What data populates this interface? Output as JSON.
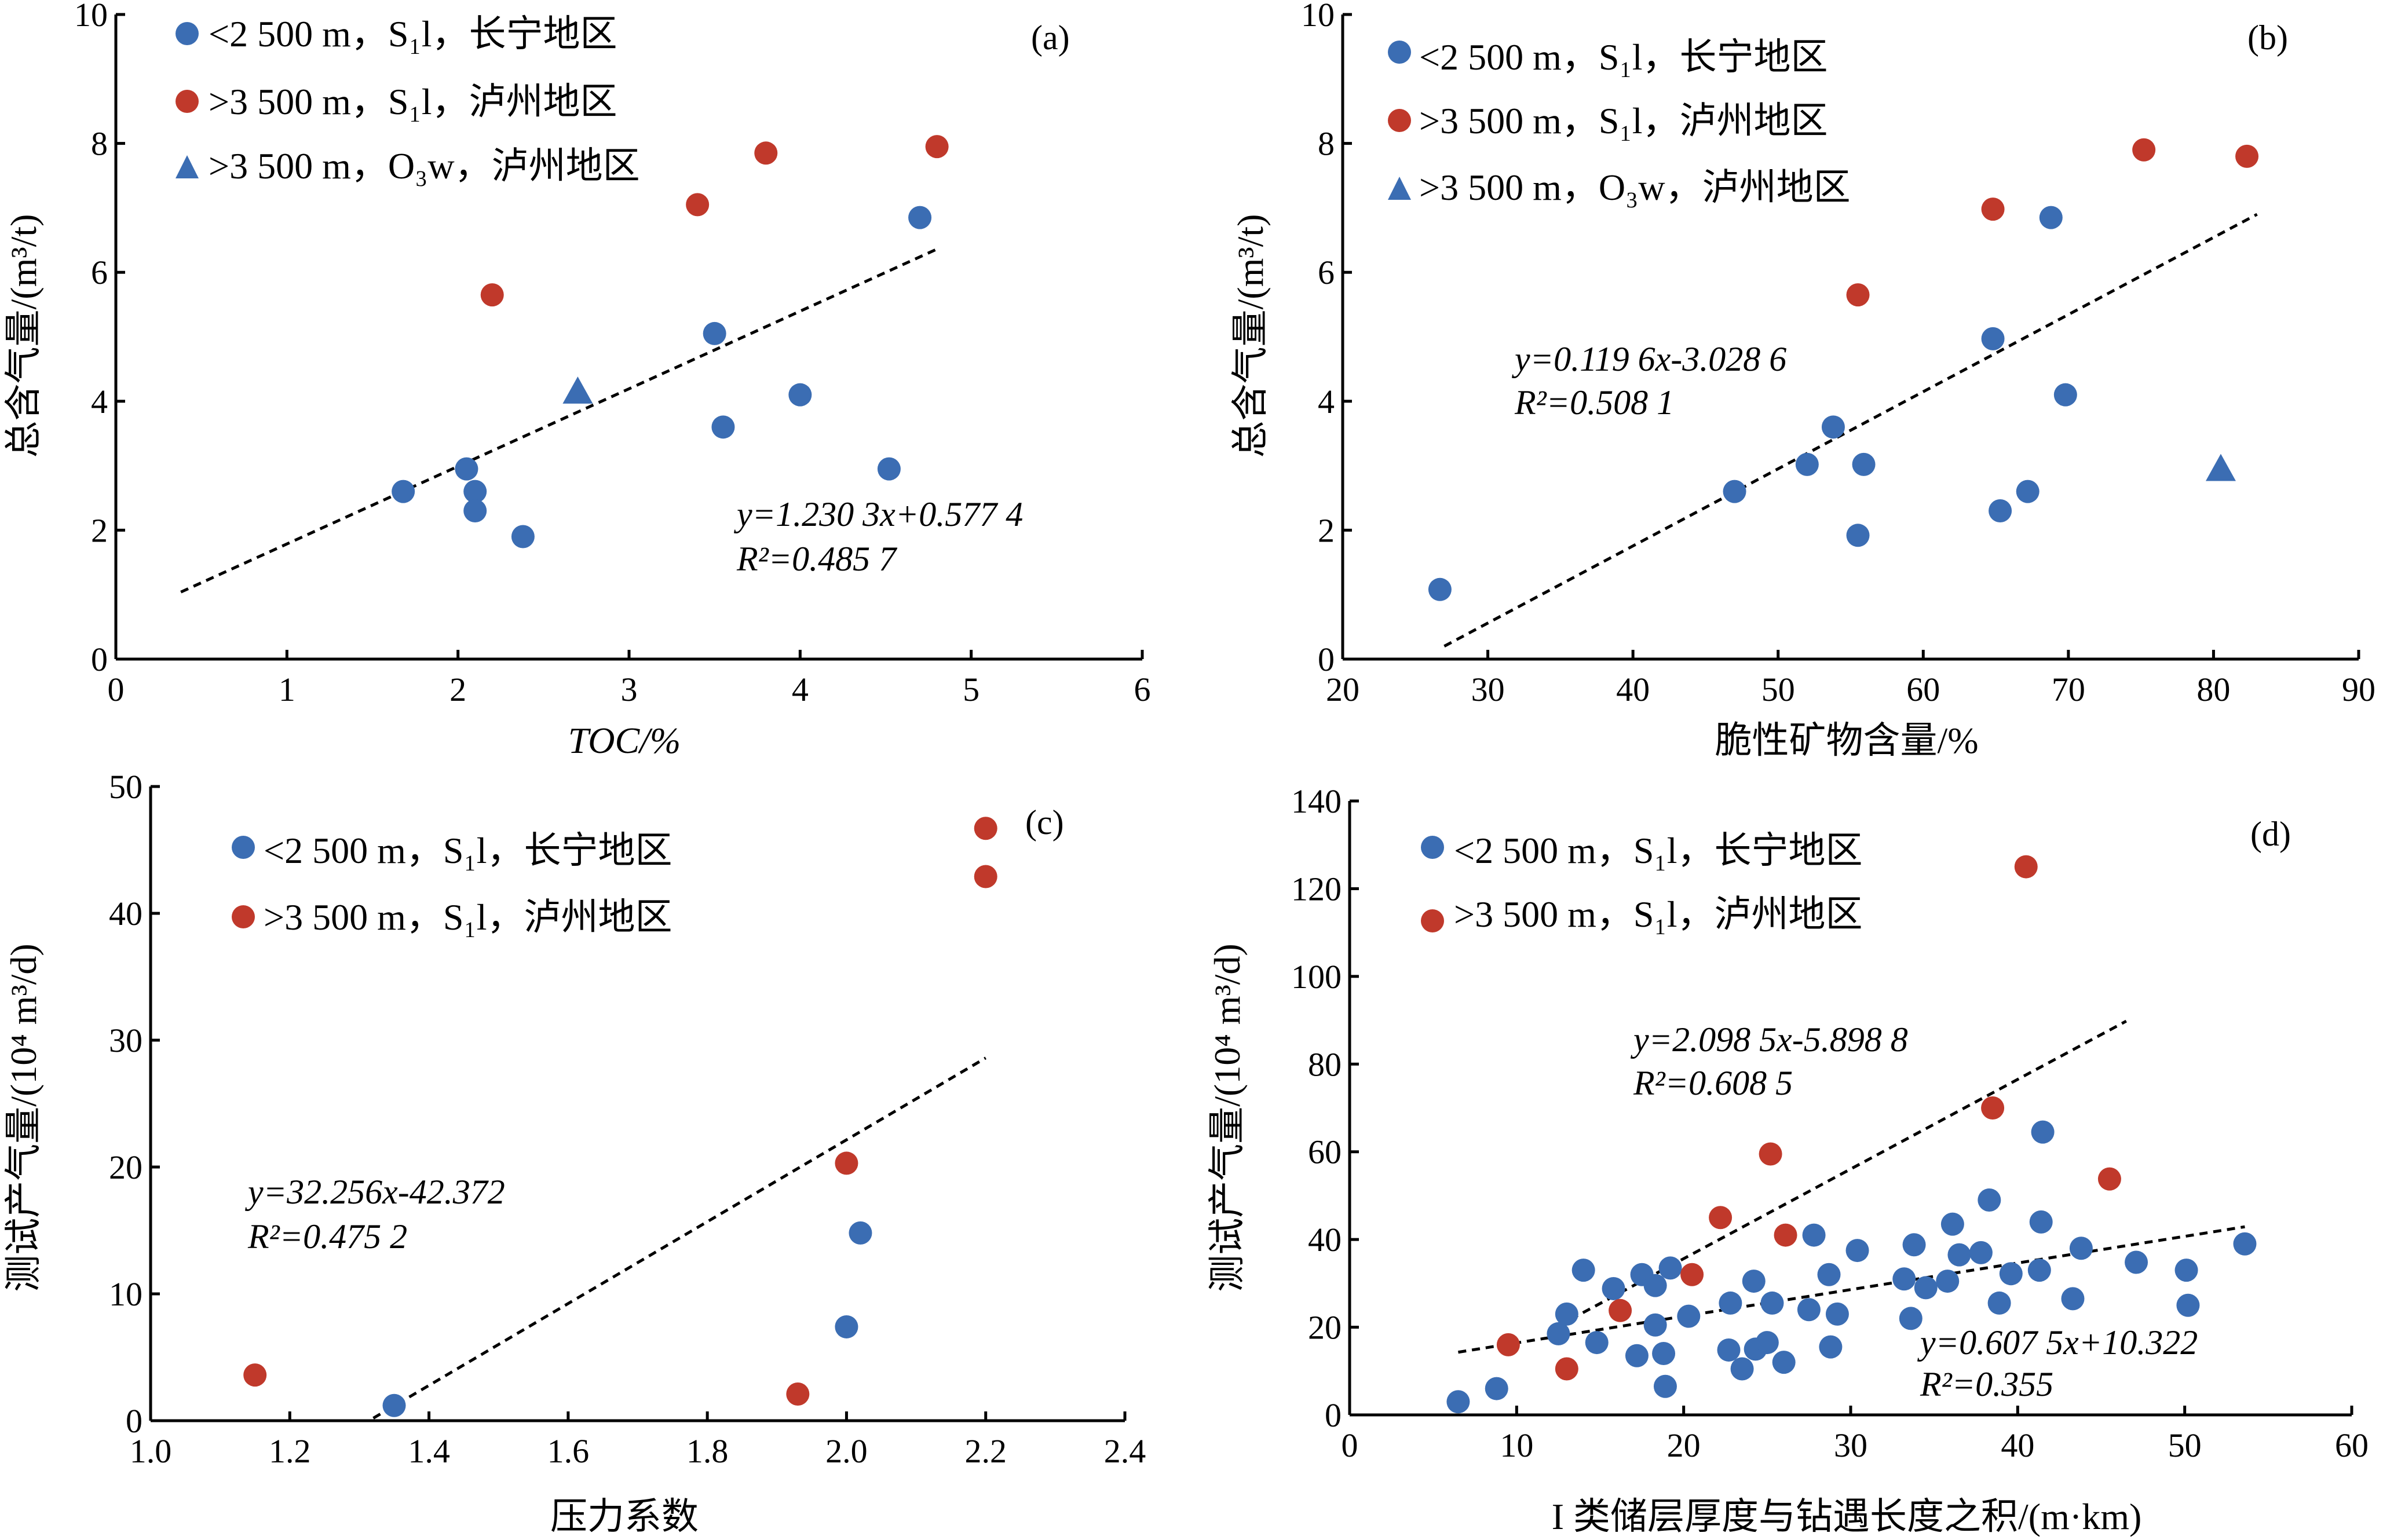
{
  "colors": {
    "blue": "#3b6db3",
    "red": "#c0392b",
    "black": "#000000"
  },
  "chart_data": [
    {
      "id": "a",
      "type": "scatter",
      "panel_label": "(a)",
      "xlabel": "TOC/%",
      "ylabel": "总含气量/(m³/t)",
      "xlim": [
        0,
        6
      ],
      "ylim": [
        0,
        10
      ],
      "xticks": [
        0,
        1,
        2,
        3,
        4,
        5,
        6
      ],
      "yticks": [
        0,
        2,
        4,
        6,
        8,
        10
      ],
      "xtick_labels": [
        "0",
        "1",
        "2",
        "3",
        "4",
        "5",
        "6"
      ],
      "ytick_labels": [
        "0",
        "2",
        "4",
        "6",
        "8",
        "10"
      ],
      "legend_position": "top-left",
      "series": [
        {
          "name": "<2 500 m，S₁l，长宁地区",
          "marker": "circle",
          "color": "#3b6db3",
          "points": [
            [
              1.68,
              2.6
            ],
            [
              2.05,
              2.95
            ],
            [
              2.1,
              2.6
            ],
            [
              2.1,
              2.3
            ],
            [
              2.38,
              1.9
            ],
            [
              3.5,
              5.05
            ],
            [
              3.55,
              3.6
            ],
            [
              4.0,
              4.1
            ],
            [
              4.52,
              2.95
            ],
            [
              4.7,
              6.85
            ]
          ]
        },
        {
          "name": ">3 500 m，S₁l，泸州地区",
          "marker": "circle",
          "color": "#c0392b",
          "points": [
            [
              2.2,
              5.65
            ],
            [
              3.4,
              7.05
            ],
            [
              3.8,
              7.85
            ],
            [
              4.8,
              7.95
            ]
          ]
        },
        {
          "name": ">3 500 m，O₃w，泸州地区",
          "marker": "triangle",
          "color": "#3b6db3",
          "points": [
            [
              2.7,
              4.15
            ]
          ]
        }
      ],
      "fits": [
        {
          "equation": "y=1.230 3x+0.577 4",
          "r2": "R²=0.485 7",
          "line": [
            [
              0.38,
              1.04
            ],
            [
              4.8,
              6.36
            ]
          ]
        }
      ]
    },
    {
      "id": "b",
      "type": "scatter",
      "panel_label": "(b)",
      "xlabel": "脆性矿物含量/%",
      "ylabel": "总含气量/(m³/t)",
      "xlim": [
        20,
        90
      ],
      "ylim": [
        0,
        10
      ],
      "xticks": [
        20,
        30,
        40,
        50,
        60,
        70,
        80,
        90
      ],
      "yticks": [
        0,
        2,
        4,
        6,
        8,
        10
      ],
      "xtick_labels": [
        "20",
        "30",
        "40",
        "50",
        "60",
        "70",
        "80",
        "90"
      ],
      "ytick_labels": [
        "0",
        "2",
        "4",
        "6",
        "8",
        "10"
      ],
      "legend_position": "top-left",
      "series": [
        {
          "name": "<2 500 m，S₁l，长宁地区",
          "marker": "circle",
          "color": "#3b6db3",
          "points": [
            [
              26.7,
              1.08
            ],
            [
              47,
              2.6
            ],
            [
              52,
              3.02
            ],
            [
              53.8,
              3.6
            ],
            [
              55.5,
              1.92
            ],
            [
              55.9,
              3.02
            ],
            [
              64.8,
              4.97
            ],
            [
              65.3,
              2.3
            ],
            [
              67.2,
              2.6
            ],
            [
              68.8,
              6.85
            ],
            [
              69.8,
              4.1
            ]
          ]
        },
        {
          "name": ">3 500 m，S₁l，泸州地区",
          "marker": "circle",
          "color": "#c0392b",
          "points": [
            [
              55.5,
              5.65
            ],
            [
              64.8,
              6.98
            ],
            [
              75.2,
              7.9
            ],
            [
              82.3,
              7.8
            ]
          ]
        },
        {
          "name": ">3 500 m，O₃w，泸州地区",
          "marker": "triangle",
          "color": "#3b6db3",
          "points": [
            [
              80.5,
              2.95
            ]
          ]
        }
      ],
      "fits": [
        {
          "equation": "y=0.119 6x-3.028 6",
          "r2": "R²=0.508 1",
          "line": [
            [
              27,
              0.2
            ],
            [
              83,
              6.9
            ]
          ]
        }
      ]
    },
    {
      "id": "c",
      "type": "scatter",
      "panel_label": "(c)",
      "xlabel": "压力系数",
      "ylabel": "测试产气量/(10⁴ m³/d)",
      "xlim": [
        1.0,
        2.4
      ],
      "ylim": [
        0,
        50
      ],
      "xticks": [
        1.0,
        1.2,
        1.4,
        1.6,
        1.8,
        2.0,
        2.2,
        2.4
      ],
      "yticks": [
        0,
        10,
        20,
        30,
        40,
        50
      ],
      "xtick_labels": [
        "1.0",
        "1.2",
        "1.4",
        "1.6",
        "1.8",
        "2.0",
        "2.2",
        "2.4"
      ],
      "ytick_labels": [
        "0",
        "10",
        "20",
        "30",
        "40",
        "50"
      ],
      "legend_position": "top-left",
      "series": [
        {
          "name": "<2 500 m，S₁l，长宁地区",
          "marker": "circle",
          "color": "#3b6db3",
          "points": [
            [
              1.35,
              1.2
            ],
            [
              2.0,
              7.4
            ],
            [
              2.02,
              14.8
            ]
          ]
        },
        {
          "name": ">3 500 m，S₁l，泸州地区",
          "marker": "circle",
          "color": "#c0392b",
          "points": [
            [
              1.15,
              3.6
            ],
            [
              1.93,
              2.1
            ],
            [
              2.0,
              20.3
            ],
            [
              2.2,
              42.9
            ],
            [
              2.2,
              46.7
            ]
          ]
        }
      ],
      "fits": [
        {
          "equation": "y=32.256x-42.372",
          "r2": "R²=0.475 2",
          "line": [
            [
              1.32,
              0.2
            ],
            [
              2.2,
              28.6
            ]
          ]
        }
      ]
    },
    {
      "id": "d",
      "type": "scatter",
      "panel_label": "(d)",
      "xlabel": "I 类储层厚度与钻遇长度之积/(m·km)",
      "ylabel": "测试产气量/(10⁴ m³/d)",
      "xlim": [
        0,
        60
      ],
      "ylim": [
        0,
        140
      ],
      "xticks": [
        0,
        10,
        20,
        30,
        40,
        50,
        60
      ],
      "yticks": [
        0,
        20,
        40,
        60,
        80,
        100,
        120,
        140
      ],
      "xtick_labels": [
        "0",
        "10",
        "20",
        "30",
        "40",
        "50",
        "60"
      ],
      "ytick_labels": [
        "0",
        "20",
        "40",
        "60",
        "80",
        "100",
        "120",
        "140"
      ],
      "legend_position": "top-left",
      "series": [
        {
          "name": "<2 500 m，S₁l，长宁地区",
          "marker": "circle",
          "color": "#3b6db3",
          "points": [
            [
              6.5,
              3
            ],
            [
              8.8,
              6
            ],
            [
              12.5,
              18.5
            ],
            [
              13,
              23
            ],
            [
              14,
              33
            ],
            [
              14.8,
              16.5
            ],
            [
              15.8,
              28.8
            ],
            [
              17.2,
              13.5
            ],
            [
              17.5,
              32
            ],
            [
              18.3,
              29.5
            ],
            [
              18.3,
              20.5
            ],
            [
              18.8,
              14
            ],
            [
              18.9,
              6.5
            ],
            [
              19.2,
              33.5
            ],
            [
              20.3,
              22.5
            ],
            [
              22.7,
              14.8
            ],
            [
              22.8,
              25.5
            ],
            [
              23.5,
              10.5
            ],
            [
              24.2,
              30.5
            ],
            [
              24.3,
              15
            ],
            [
              25,
              16.5
            ],
            [
              25.3,
              25.5
            ],
            [
              26,
              12
            ],
            [
              27.5,
              24
            ],
            [
              27.8,
              41
            ],
            [
              28.7,
              32
            ],
            [
              28.8,
              15.5
            ],
            [
              29.2,
              23
            ],
            [
              30.4,
              37.5
            ],
            [
              33.2,
              31
            ],
            [
              33.6,
              22
            ],
            [
              33.8,
              38.8
            ],
            [
              34.5,
              29
            ],
            [
              35.8,
              30.5
            ],
            [
              36.1,
              43.5
            ],
            [
              36.5,
              36.5
            ],
            [
              37.8,
              37
            ],
            [
              38.3,
              49
            ],
            [
              38.9,
              25.5
            ],
            [
              39.6,
              32.2
            ],
            [
              41.3,
              33
            ],
            [
              41.5,
              64.5
            ],
            [
              41.4,
              44
            ],
            [
              43.3,
              26.5
            ],
            [
              43.8,
              38
            ],
            [
              47.1,
              34.8
            ],
            [
              50.1,
              33
            ],
            [
              50.2,
              25
            ],
            [
              53.6,
              39
            ]
          ]
        },
        {
          "name": ">3 500 m，S₁l，泸州地区",
          "marker": "circle",
          "color": "#c0392b",
          "points": [
            [
              9.5,
              16
            ],
            [
              13,
              10.5
            ],
            [
              16.2,
              23.8
            ],
            [
              20.5,
              32
            ],
            [
              22.2,
              45
            ],
            [
              25.2,
              59.5
            ],
            [
              26.1,
              41
            ],
            [
              38.5,
              70
            ],
            [
              40.5,
              125
            ],
            [
              45.5,
              53.8
            ]
          ]
        }
      ],
      "fits": [
        {
          "equation": "y=2.098 5x-5.898 8",
          "r2": "R²=0.608 5",
          "line": [
            [
              12.5,
              20.3
            ],
            [
              46.5,
              89.8
            ]
          ]
        },
        {
          "equation": "y=0.607 5x+10.322",
          "r2": "R²=0.355",
          "line": [
            [
              6.5,
              14.3
            ],
            [
              53.6,
              42.9
            ]
          ]
        }
      ]
    }
  ]
}
